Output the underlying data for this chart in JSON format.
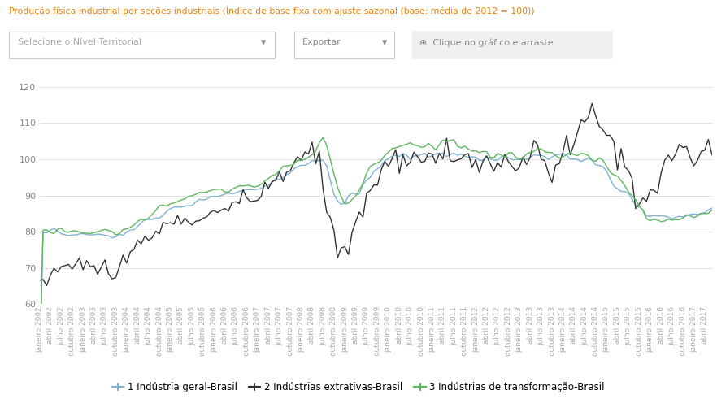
{
  "title": "Produção física industrial por seções industriais (Índice de base fixa com ajuste sazonal (base: média de 2012 = 100))",
  "title_color": "#e8820a",
  "background_color": "#ffffff",
  "plot_bg_color": "#ffffff",
  "grid_color": "#e0e0e0",
  "ylim": [
    60,
    125
  ],
  "yticks": [
    60,
    70,
    80,
    90,
    100,
    110,
    120
  ],
  "line1_color": "#7fb3d3",
  "line2_color": "#333333",
  "line3_color": "#5cb85c",
  "line1_label": "1 Indústria geral-Brasil",
  "line2_label": "2 Indústrias extrativas-Brasil",
  "line3_label": "3 Indústrias de transformação-Brasil",
  "ui_text1": "Selecione o Nível Territorial",
  "ui_text2": "Exportar",
  "ui_text3": "Clique no gráfico e arraste",
  "tick_color": "#aaaaaa",
  "tick_fontsize": 6.5
}
